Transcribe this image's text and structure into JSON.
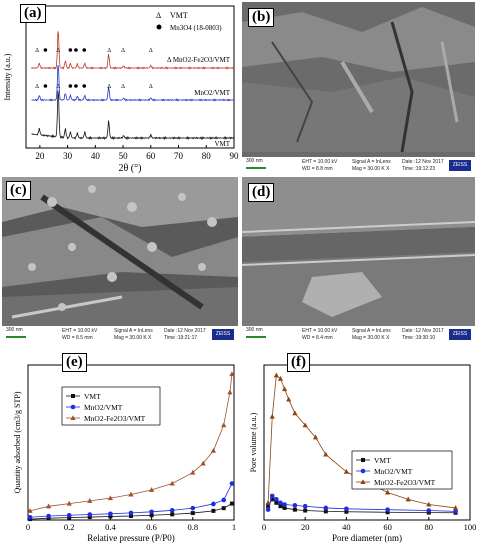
{
  "panels": {
    "a": "(a)",
    "b": "(b)",
    "c": "(c)",
    "d": "(d)",
    "e": "(e)",
    "f": "(f)"
  },
  "sem": {
    "b": {
      "scale": "300 nm",
      "eht": "EHT = 10.00 kV",
      "wd": "WD = 8.8 mm",
      "signal": "Signal A = InLens",
      "mag": "Mag = 30.00 K X",
      "date": "Date :12 Nov 2017",
      "time": "Time :19:12:23",
      "logo": "ZEISS"
    },
    "c": {
      "scale": "300 nm",
      "eht": "EHT = 10.00 kV",
      "wd": "WD = 8.5 mm",
      "signal": "Signal A = InLens",
      "mag": "Mag = 30.00 K X",
      "date": "Date :12 Nov 2017",
      "time": "Time :19:21:17",
      "logo": "ZEISS"
    },
    "d": {
      "scale": "300 nm",
      "eht": "EHT = 10.00 kV",
      "wd": "WD = 8.4 mm",
      "signal": "Signal A = InLens",
      "mag": "Mag = 30.00 K X",
      "date": "Date :12 Nov 2017",
      "time": "Time :19:30:10",
      "logo": "ZEISS"
    }
  },
  "chart_data": [
    {
      "id": "a",
      "type": "line",
      "xlabel": "2θ (°)",
      "ylabel": "Intensity (a.u.)",
      "xlim": [
        15,
        90
      ],
      "xticks": [
        20,
        30,
        40,
        50,
        60,
        70,
        80,
        90
      ],
      "legend": [
        {
          "marker": "Δ",
          "label": "VMT"
        },
        {
          "marker": "●",
          "label": "Mn3O4 (18-0803)"
        }
      ],
      "series": [
        {
          "name": "MnO2-Fe2O3/VMT",
          "color": "#c0392b",
          "offset": 2.0
        },
        {
          "name": "MnO2/VMT",
          "color": "#2233cc",
          "offset": 1.0
        },
        {
          "name": "VMT",
          "color": "#111111",
          "offset": 0.0
        }
      ],
      "series_labels": [
        "Δ MnO2-Fe2O3/VMT",
        "MnO2/VMT",
        "VMT"
      ],
      "peaks": [
        {
          "x": 19.8,
          "h": 0.12
        },
        {
          "x": 26.6,
          "h": 1.0
        },
        {
          "x": 29.2,
          "h": 0.18
        },
        {
          "x": 31.0,
          "h": 0.12
        },
        {
          "x": 33.5,
          "h": 0.1
        },
        {
          "x": 36.2,
          "h": 0.12
        },
        {
          "x": 44.8,
          "h": 0.35
        },
        {
          "x": 50.2,
          "h": 0.05
        },
        {
          "x": 60.0,
          "h": 0.06
        }
      ]
    },
    {
      "id": "e",
      "type": "line",
      "xlabel": "Relative pressure (P/P0)",
      "ylabel": "Quantity adsorbed (cm3/g STP)",
      "xlim": [
        0,
        1.0
      ],
      "xticks": [
        0,
        0.2,
        0.4,
        0.6,
        0.8,
        1.0
      ],
      "series": [
        {
          "name": "VMT",
          "color": "#111111",
          "marker": "square",
          "x": [
            0.01,
            0.1,
            0.2,
            0.3,
            0.4,
            0.5,
            0.6,
            0.7,
            0.8,
            0.9,
            0.95,
            0.99
          ],
          "y": [
            0.5,
            1.0,
            1.3,
            1.6,
            1.9,
            2.2,
            2.6,
            3.1,
            3.8,
            5.0,
            6.5,
            9.0
          ]
        },
        {
          "name": "MnO2/VMT",
          "color": "#1e2ee0",
          "marker": "circle",
          "x": [
            0.01,
            0.1,
            0.2,
            0.3,
            0.4,
            0.5,
            0.6,
            0.7,
            0.8,
            0.9,
            0.95,
            0.99
          ],
          "y": [
            1.5,
            2.2,
            2.6,
            3.0,
            3.4,
            3.9,
            4.5,
            5.3,
            6.5,
            8.8,
            11,
            20
          ]
        },
        {
          "name": "MnO2-Fe2O3/VMT",
          "color": "#a0522d",
          "marker": "triangle",
          "x": [
            0.01,
            0.1,
            0.2,
            0.3,
            0.4,
            0.5,
            0.6,
            0.7,
            0.8,
            0.85,
            0.9,
            0.95,
            0.98,
            0.99
          ],
          "y": [
            5,
            7.5,
            9,
            10.5,
            12,
            14,
            16.5,
            20,
            26,
            31,
            38,
            52,
            70,
            80
          ]
        }
      ]
    },
    {
      "id": "f",
      "type": "line",
      "xlabel": "Pore diameter (nm)",
      "ylabel": "Pore volume (a.u.)",
      "xlim": [
        0,
        100
      ],
      "xticks": [
        0,
        20,
        40,
        60,
        80,
        100
      ],
      "series": [
        {
          "name": "VMT",
          "color": "#111111",
          "marker": "square",
          "x": [
            2,
            4,
            6,
            8,
            10,
            15,
            20,
            30,
            40,
            60,
            80,
            93
          ],
          "y": [
            8,
            12,
            10,
            8,
            7,
            6,
            5.5,
            5,
            4.8,
            4.5,
            4.3,
            4.2
          ]
        },
        {
          "name": "MnO2/VMT",
          "color": "#1e2ee0",
          "marker": "circle",
          "x": [
            2,
            4,
            6,
            8,
            10,
            15,
            20,
            30,
            40,
            60,
            80,
            93
          ],
          "y": [
            6,
            14,
            12,
            10,
            9,
            8.5,
            8,
            7,
            6.5,
            6,
            5.5,
            5
          ]
        },
        {
          "name": "MnO2-Fe2O3/VMT",
          "color": "#8b4513",
          "marker": "triangle",
          "x": [
            2,
            4,
            6,
            8,
            10,
            12,
            15,
            20,
            25,
            30,
            40,
            50,
            60,
            70,
            80,
            93
          ],
          "y": [
            10,
            60,
            84,
            82,
            76,
            70,
            62,
            55,
            48,
            38,
            28,
            22,
            16,
            12,
            9,
            7
          ]
        }
      ]
    }
  ]
}
